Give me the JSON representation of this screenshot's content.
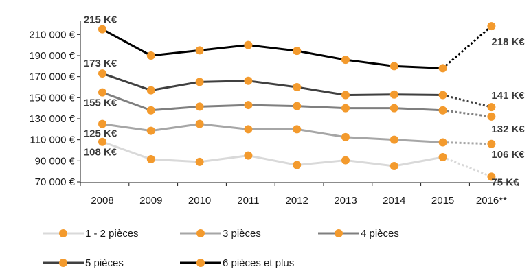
{
  "chart_data": {
    "type": "line",
    "categories": [
      "2008",
      "2009",
      "2010",
      "2011",
      "2012",
      "2013",
      "2014",
      "2015",
      "2016**"
    ],
    "y_ticks": [
      "70 000 €",
      "90 000 €",
      "110 000 €",
      "130 000 €",
      "150 000 €",
      "170 000 €",
      "190 000 €",
      "210 000 €"
    ],
    "ylim": [
      70000,
      220000
    ],
    "grid": false,
    "legend_position": "bottom",
    "projection_from_category": "2015",
    "marker_color": "#f39a2d",
    "series": [
      {
        "name": "1 - 2 pièces",
        "color": "#d9d9d9",
        "values": [
          108000,
          91500,
          89000,
          95000,
          86000,
          90500,
          85000,
          93500,
          75000
        ]
      },
      {
        "name": "3 pièces",
        "color": "#a6a6a6",
        "values": [
          125000,
          118500,
          125000,
          120000,
          120000,
          112500,
          110000,
          107500,
          106000
        ]
      },
      {
        "name": "4 pièces",
        "color": "#7f7f7f",
        "values": [
          155000,
          138000,
          141500,
          143000,
          142000,
          140000,
          140000,
          138000,
          132000
        ]
      },
      {
        "name": "5 pièces",
        "color": "#404040",
        "values": [
          173000,
          157000,
          165000,
          166000,
          160000,
          152500,
          153000,
          152500,
          141000
        ]
      },
      {
        "name": "6 pièces et plus",
        "color": "#000000",
        "values": [
          215000,
          190000,
          195000,
          200000,
          194500,
          186000,
          180000,
          178000,
          218000
        ]
      }
    ],
    "annotations": [
      {
        "text": "215 K€",
        "series": 4,
        "category": "2008"
      },
      {
        "text": "173 K€",
        "series": 3,
        "category": "2008"
      },
      {
        "text": "155 K€",
        "series": 2,
        "category": "2008"
      },
      {
        "text": "125 K€",
        "series": 1,
        "category": "2008"
      },
      {
        "text": "108 K€",
        "series": 0,
        "category": "2008"
      },
      {
        "text": "218 K€",
        "series": 4,
        "category": "2016**"
      },
      {
        "text": "141 K€",
        "series": 3,
        "category": "2016**"
      },
      {
        "text": "132 K€",
        "series": 2,
        "category": "2016**"
      },
      {
        "text": "106 K€",
        "series": 1,
        "category": "2016**"
      },
      {
        "text": "75 K€",
        "series": 0,
        "category": "2016**"
      }
    ]
  }
}
